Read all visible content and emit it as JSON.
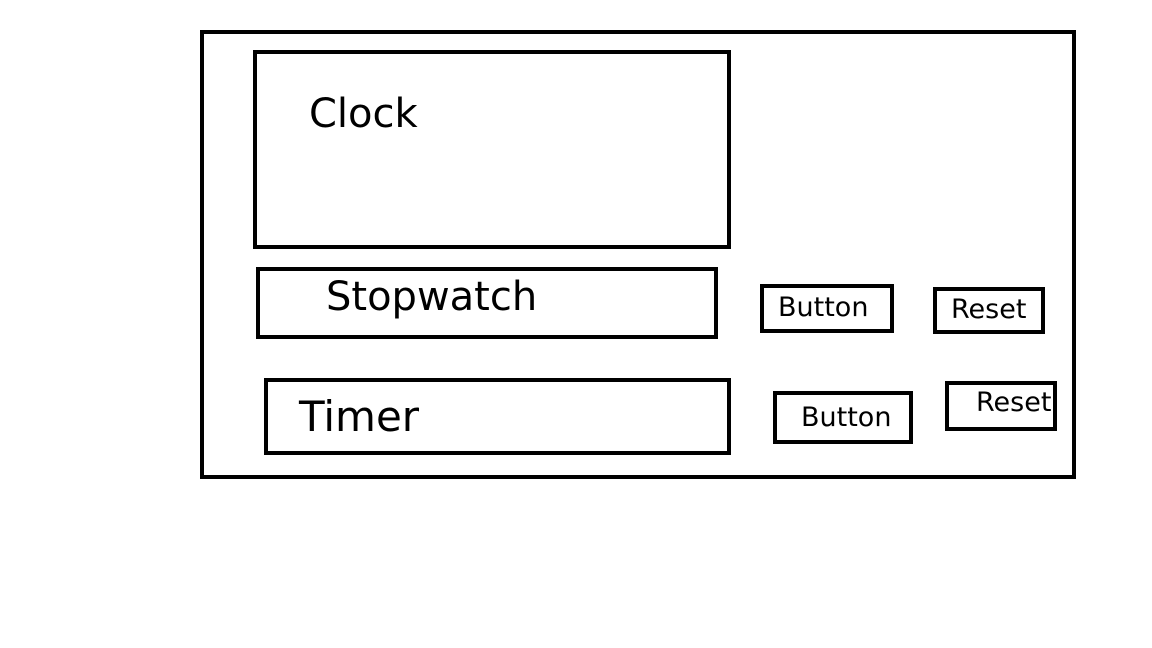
{
  "clock": {
    "label": "Clock"
  },
  "stopwatch": {
    "label": "Stopwatch",
    "button_label": "Button",
    "reset_label": "Reset"
  },
  "timer": {
    "label": "Timer",
    "button_label": "Button",
    "reset_label": "Reset"
  }
}
